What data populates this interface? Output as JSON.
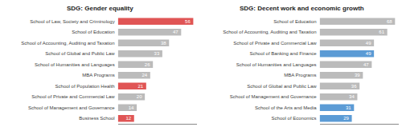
{
  "chart_data": [
    {
      "type": "bar",
      "title": "SDG: Gender equality",
      "orientation": "horizontal",
      "categories": [
        "School of Law, Society and Criminology",
        "School of Education",
        "School of Accounting, Auditing and Taxation",
        "School of Global and Public Law",
        "School of Humanities and Languages",
        "MBA Programs",
        "School of Population Health",
        "School of Private and Commercial Law",
        "School of Management and Governance",
        "Business School"
      ],
      "values": [
        56,
        47,
        38,
        33,
        26,
        24,
        21,
        20,
        14,
        12
      ],
      "colors": [
        "#e05555",
        "#bbbbbb",
        "#bbbbbb",
        "#bbbbbb",
        "#bbbbbb",
        "#bbbbbb",
        "#e05555",
        "#bbbbbb",
        "#bbbbbb",
        "#e05555"
      ],
      "xlim": [
        0,
        58.8
      ],
      "data_labels": true,
      "tick_labels": "y",
      "grid": false
    },
    {
      "type": "bar",
      "title": "SDG: Decent work and economic growth",
      "orientation": "horizontal",
      "categories": [
        "School of Education",
        "School of Accounting, Auditing and Taxation",
        "School of Private and Commercial Law",
        "School of Banking and Finance",
        "School of Humanities and Languages",
        "MBA Programs",
        "School of Global and Public Law",
        "School of Management and Governance",
        "School of the Arts and Media",
        "School of Economics"
      ],
      "values": [
        68,
        61,
        49,
        49,
        47,
        39,
        36,
        34,
        31,
        29
      ],
      "colors": [
        "#bbbbbb",
        "#bbbbbb",
        "#bbbbbb",
        "#5b9bd5",
        "#bbbbbb",
        "#bbbbbb",
        "#bbbbbb",
        "#bbbbbb",
        "#5b9bd5",
        "#5b9bd5"
      ],
      "xlim": [
        0,
        71.4
      ],
      "data_labels": true,
      "tick_labels": "y",
      "grid": false
    }
  ]
}
